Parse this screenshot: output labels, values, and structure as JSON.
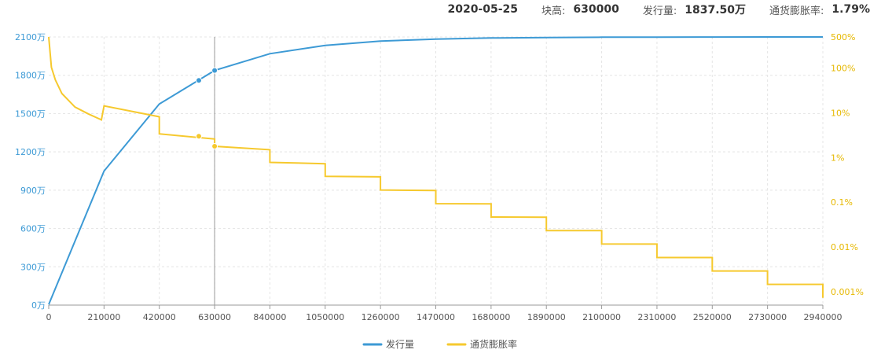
{
  "header": {
    "date": "2020-05-25",
    "height_label": "块高:",
    "height_value": "630000",
    "supply_label": "发行量:",
    "supply_value": "1837.50万",
    "inflation_label": "通货膨胀率:",
    "inflation_value": "1.79%"
  },
  "colors": {
    "supply": "#3d9ad5",
    "inflation": "#f6c92e",
    "left_axis_text": "#3d9ad5",
    "right_axis_text": "#e6b800"
  },
  "chart_data": {
    "type": "line",
    "grid": true,
    "legend_position": "bottom-center",
    "x_ticks": [
      "0",
      "210000",
      "420000",
      "630000",
      "840000",
      "1050000",
      "1260000",
      "1470000",
      "1680000",
      "1890000",
      "2100000",
      "2310000",
      "2520000",
      "2730000",
      "2940000"
    ],
    "xlim": [
      0,
      2940000
    ],
    "y_left_ticks": [
      "0万",
      "300万",
      "600万",
      "900万",
      "1200万",
      "1500万",
      "1800万",
      "2100万"
    ],
    "ylim_left": [
      0,
      2100
    ],
    "y_right_ticks": [
      "0.001%",
      "0.01%",
      "0.1%",
      "1%",
      "10%",
      "100%",
      "500%"
    ],
    "y_right_scale": "log",
    "ylim_right": [
      0.0005,
      500
    ],
    "cursor_x": 630000,
    "series": [
      {
        "name": "发行量",
        "axis": "left",
        "x": [
          0,
          210000,
          420000,
          630000,
          840000,
          1050000,
          1260000,
          1470000,
          1680000,
          1890000,
          2100000,
          2310000,
          2520000,
          2730000,
          2940000
        ],
        "values": [
          5,
          1050,
          1575,
          1837.5,
          1968.75,
          2034.375,
          2067.1875,
          2083.59,
          2091.8,
          2095.9,
          2097.95,
          2098.97,
          2099.49,
          2099.74,
          2099.87
        ]
      },
      {
        "name": "通货膨胀率",
        "axis": "right",
        "segments": [
          {
            "x": [
              0,
              10000,
              25000,
              50000,
              100000,
              150000,
              200000
            ],
            "values": [
              500,
              105,
              55,
              27,
              13.5,
              9.5,
              7.0
            ]
          },
          {
            "x": [
              210000,
              420000
            ],
            "values": [
              14.3,
              8.2
            ]
          },
          {
            "x": [
              420000,
              630000
            ],
            "values": [
              3.4,
              2.6
            ]
          },
          {
            "x": [
              630000,
              840000
            ],
            "values": [
              1.79,
              1.5
            ]
          },
          {
            "x": [
              840000,
              1050000
            ],
            "values": [
              0.78,
              0.73
            ]
          },
          {
            "x": [
              1050000,
              1260000
            ],
            "values": [
              0.38,
              0.37
            ]
          },
          {
            "x": [
              1260000,
              1470000
            ],
            "values": [
              0.188,
              0.183
            ]
          },
          {
            "x": [
              1470000,
              1680000
            ],
            "values": [
              0.093,
              0.092
            ]
          },
          {
            "x": [
              1680000,
              1890000
            ],
            "values": [
              0.0468,
              0.0464
            ]
          },
          {
            "x": [
              1890000,
              2100000
            ],
            "values": [
              0.0233,
              0.0232
            ]
          },
          {
            "x": [
              2100000,
              2310000
            ],
            "values": [
              0.0117,
              0.0116
            ]
          },
          {
            "x": [
              2310000,
              2520000
            ],
            "values": [
              0.0058,
              0.0058
            ]
          },
          {
            "x": [
              2520000,
              2730000
            ],
            "values": [
              0.0029,
              0.0029
            ]
          },
          {
            "x": [
              2730000,
              2940000
            ],
            "values": [
              0.00146,
              0.00146
            ]
          },
          {
            "x": [
              2940000
            ],
            "values": [
              0.00073
            ]
          }
        ]
      }
    ],
    "markers": [
      {
        "series": "发行量",
        "x": 570000,
        "value": 1760
      },
      {
        "series": "发行量",
        "x": 630000,
        "value": 1837.5
      },
      {
        "series": "通货膨胀率",
        "x": 570000,
        "value": 3.0
      },
      {
        "series": "通货膨胀率",
        "x": 630000,
        "value": 1.79
      }
    ]
  }
}
